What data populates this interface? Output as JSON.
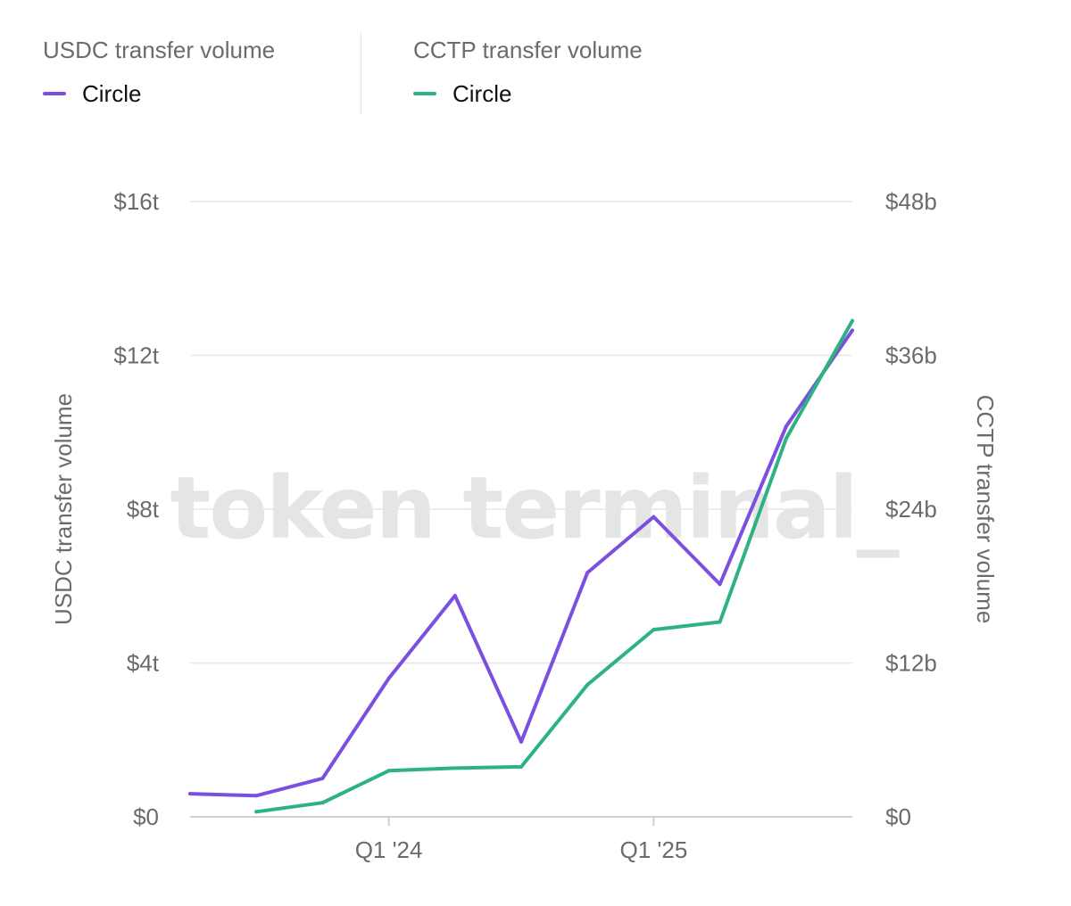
{
  "legend": [
    {
      "title": "USDC transfer volume",
      "label": "Circle",
      "color": "#7b4fe0"
    },
    {
      "title": "CCTP transfer volume",
      "label": "Circle",
      "color": "#2db37f"
    }
  ],
  "watermark": "token terminal_",
  "chart_data": {
    "type": "line",
    "x_tick_labels": [
      {
        "label": "Q1 '24",
        "index": 3
      },
      {
        "label": "Q1 '25",
        "index": 7
      }
    ],
    "grid": true,
    "legend_position": "top-left",
    "left_axis": {
      "label": "USDC transfer volume",
      "ylim": [
        0,
        16
      ],
      "unit": "trillion USD",
      "ticks": [
        0,
        4,
        8,
        12,
        16
      ],
      "tick_labels": [
        "$0",
        "$4t",
        "$8t",
        "$12t",
        "$16t"
      ]
    },
    "right_axis": {
      "label": "CCTP transfer volume",
      "ylim": [
        0,
        48
      ],
      "unit": "billion USD",
      "ticks": [
        0,
        12,
        24,
        36,
        48
      ],
      "tick_labels": [
        "$0",
        "$12b",
        "$24b",
        "$36b",
        "$48b"
      ]
    },
    "series": [
      {
        "name": "Circle",
        "axis": "left",
        "color": "#7b4fe0",
        "x": [
          0,
          1,
          2,
          3,
          4,
          5,
          6,
          7,
          8,
          9,
          10
        ],
        "values": [
          0.6,
          0.55,
          1.0,
          3.6,
          5.75,
          1.95,
          6.35,
          7.8,
          6.05,
          10.15,
          12.65
        ]
      },
      {
        "name": "Circle",
        "axis": "right",
        "color": "#2db37f",
        "x": [
          1,
          2,
          3,
          4,
          5,
          6,
          7,
          8,
          9,
          10
        ],
        "values": [
          0.4,
          1.1,
          3.6,
          3.8,
          3.9,
          10.3,
          14.6,
          15.2,
          29.5,
          38.7
        ]
      }
    ]
  }
}
